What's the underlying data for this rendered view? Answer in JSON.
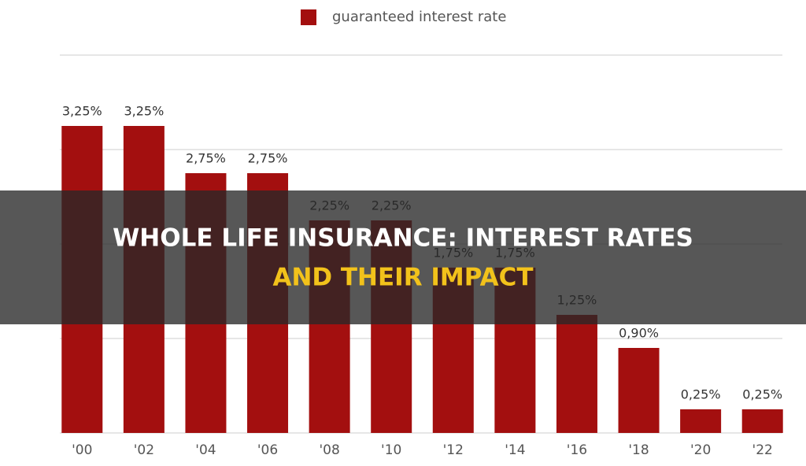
{
  "chart_data": {
    "type": "bar",
    "title_lines": [
      "WHOLE LIFE INSURANCE: INTEREST RATES",
      "AND THEIR IMPACT"
    ],
    "categories": [
      "'00",
      "'02",
      "'04",
      "'06",
      "'08",
      "'10",
      "'12",
      "'14",
      "'16",
      "'18",
      "'20",
      "'22"
    ],
    "series": [
      {
        "name": "guaranteed interest rate",
        "color": "#a30f0f",
        "values": [
          3.25,
          3.25,
          2.75,
          2.75,
          2.25,
          2.25,
          1.75,
          1.75,
          1.25,
          0.9,
          0.25,
          0.25
        ],
        "value_labels": [
          "3,25%",
          "3,25%",
          "2,75%",
          "2,75%",
          "2,25%",
          "2,25%",
          "1,75%",
          "1,75%",
          "1,25%",
          "0,90%",
          "0,25%",
          "0,25%"
        ]
      }
    ],
    "ylim": [
      0,
      4
    ],
    "yticks": [
      0,
      1,
      2,
      3,
      4
    ],
    "grid": true,
    "legend": "top"
  }
}
